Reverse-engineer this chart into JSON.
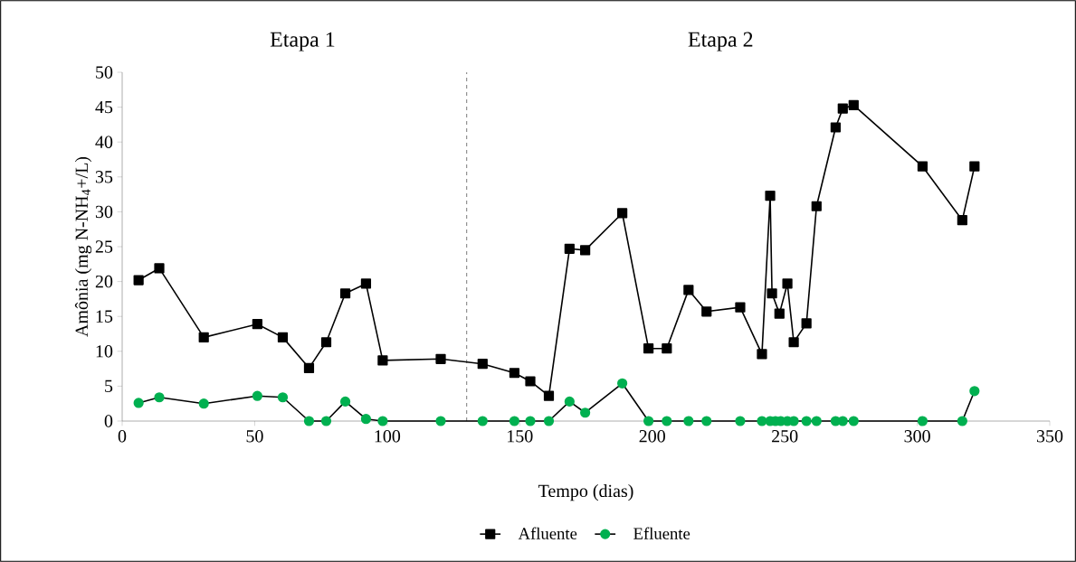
{
  "chart_data": {
    "type": "line",
    "xlabel": "Tempo (dias)",
    "ylabel": "Amônia (mg N-NH$_{4}$+/L)",
    "xlim": [
      0,
      350
    ],
    "xticks": [
      0,
      50,
      100,
      150,
      200,
      250,
      300,
      350
    ],
    "ylim": [
      0,
      50
    ],
    "yticks": [
      0,
      5,
      10,
      15,
      20,
      25,
      30,
      35,
      40,
      45,
      50
    ],
    "grid": false,
    "legend": "bottom",
    "line_style": "solid",
    "annotations": [
      "Etapa 1",
      "Etapa 2"
    ],
    "ref_lines": [
      {
        "axis": "x",
        "value": 130,
        "line_style": "dashed",
        "color": "#000000"
      }
    ],
    "series": [
      {
        "name": "Afluente",
        "color": "#000000",
        "marker": "square",
        "x": [
          6.2,
          14,
          30.8,
          51,
          60.6,
          70.5,
          77,
          84.2,
          92,
          98.3,
          120.2,
          136,
          148,
          154,
          161,
          168.8,
          174.7,
          188.7,
          198.6,
          205.5,
          213.7,
          220.5,
          233.2,
          241.4,
          244.5,
          245.2,
          248,
          251,
          253.4,
          258.2,
          262,
          269.2,
          271.9,
          276,
          302,
          317,
          321.6
        ],
        "values": [
          20.2,
          21.9,
          12.0,
          13.9,
          12.0,
          7.6,
          11.3,
          18.3,
          19.7,
          8.7,
          8.9,
          8.2,
          6.9,
          5.7,
          3.6,
          24.7,
          24.5,
          29.8,
          10.4,
          10.4,
          18.8,
          15.7,
          16.3,
          9.6,
          32.3,
          18.3,
          15.4,
          19.7,
          11.3,
          14.0,
          30.8,
          42.1,
          44.8,
          45.3,
          36.5,
          28.8,
          36.5
        ]
      },
      {
        "name": "Efluente",
        "color": "#00b050",
        "marker": "circle",
        "x": [
          6.2,
          14,
          30.8,
          51,
          60.6,
          70.5,
          77,
          84.2,
          92,
          98.3,
          120.2,
          136,
          148,
          154,
          161,
          168.8,
          174.7,
          188.7,
          198.6,
          205.5,
          213.7,
          220.5,
          233.2,
          241.4,
          244.5,
          246.5,
          248.5,
          251,
          253.4,
          258.2,
          262,
          269.2,
          271.9,
          276,
          302,
          317,
          321.6
        ],
        "values": [
          2.6,
          3.4,
          2.5,
          3.6,
          3.4,
          0,
          0,
          2.8,
          0.3,
          0,
          0,
          0,
          0,
          0,
          0,
          2.8,
          1.2,
          5.4,
          0,
          0,
          0,
          0,
          0,
          0,
          0,
          0,
          0,
          0,
          0,
          0,
          0,
          0,
          0,
          0,
          0,
          0,
          4.3
        ]
      }
    ]
  }
}
